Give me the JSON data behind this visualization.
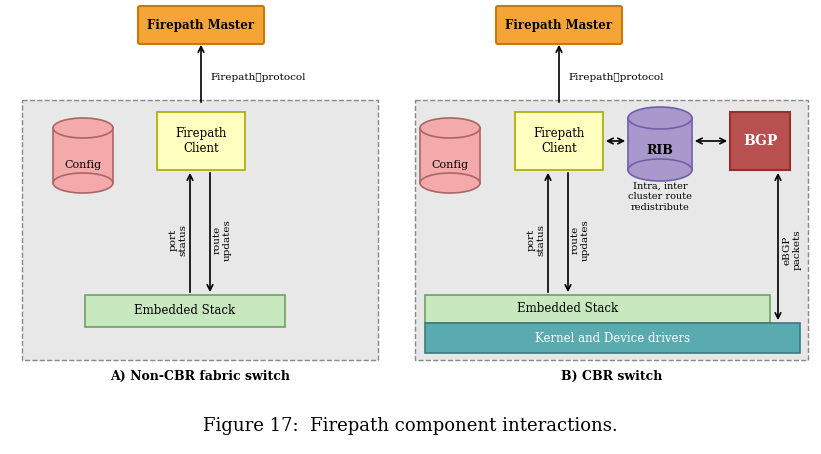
{
  "title": "Figure 17:  Firepath component interactions.",
  "title_fontsize": 13,
  "background": "#ffffff",
  "label_A": "A) Non-CBR fabric switch",
  "label_B": "B) CBR switch",
  "colors": {
    "orange_face": "#F5A535",
    "orange_edge": "#C47A10",
    "yellow_face": "#FFFFC0",
    "yellow_edge": "#AAAA00",
    "pink_face": "#F4AAAA",
    "pink_edge": "#AA6666",
    "green_face": "#C8E8C0",
    "green_edge": "#70A060",
    "teal_face": "#5AABB0",
    "teal_edge": "#3A7A80",
    "purple_face": "#A898CC",
    "purple_edge": "#7060AA",
    "red_face": "#B85050",
    "red_edge": "#903030",
    "gray_bg": "#E8E8E8",
    "gray_border": "#888888",
    "black": "#000000",
    "white": "#ffffff"
  }
}
